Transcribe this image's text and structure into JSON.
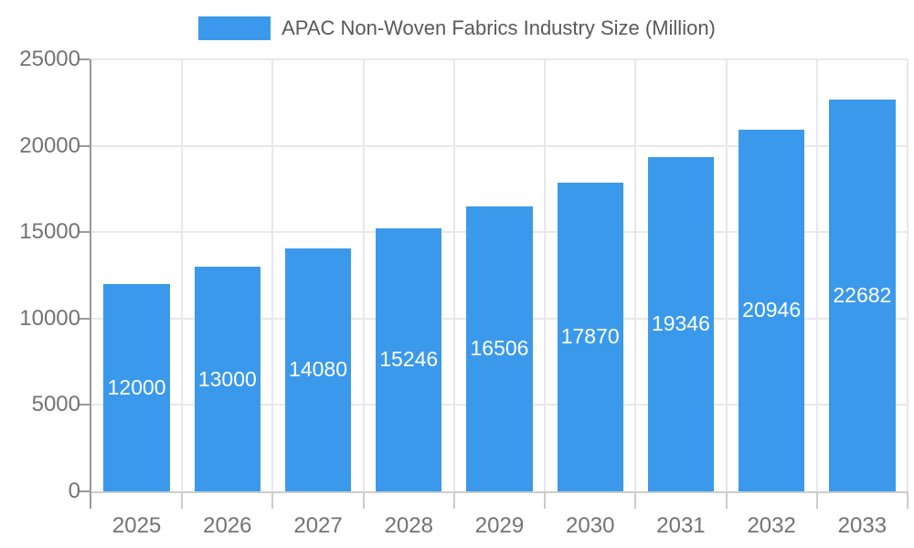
{
  "chart_data": {
    "type": "bar",
    "title": "APAC Non-Woven Fabrics Industry Size (Million)",
    "categories": [
      "2025",
      "2026",
      "2027",
      "2028",
      "2029",
      "2030",
      "2031",
      "2032",
      "2033"
    ],
    "series": [
      {
        "name": "APAC Non-Woven Fabrics Industry Size (Million)",
        "values": [
          12000,
          13000,
          14080,
          15246,
          16506,
          17870,
          19346,
          20946,
          22682
        ]
      }
    ],
    "value_labels_shown": true,
    "value_label_position": "inside-center",
    "xlabel": "",
    "ylabel": "",
    "ylim": [
      0,
      25000
    ],
    "y_ticks": [
      0,
      5000,
      10000,
      15000,
      20000,
      25000
    ],
    "grid": true,
    "legend_position": "top"
  },
  "legend": {
    "items": [
      {
        "label": "APAC Non-Woven Fabrics Industry Size (Million)",
        "color": "#3B99EC"
      }
    ]
  },
  "colors": {
    "bar": "#3B99EC",
    "bar_value_text": "#FFFFFF",
    "gridline": "#E8E8E8",
    "y_axis_line": "#999999",
    "x_axis_line": "#CCCCCC",
    "x_tick": "#CCCCCC",
    "y_tick": "#999999",
    "axis_label_text": "#737373",
    "legend_text": "#595959",
    "background": "#FFFFFF"
  }
}
